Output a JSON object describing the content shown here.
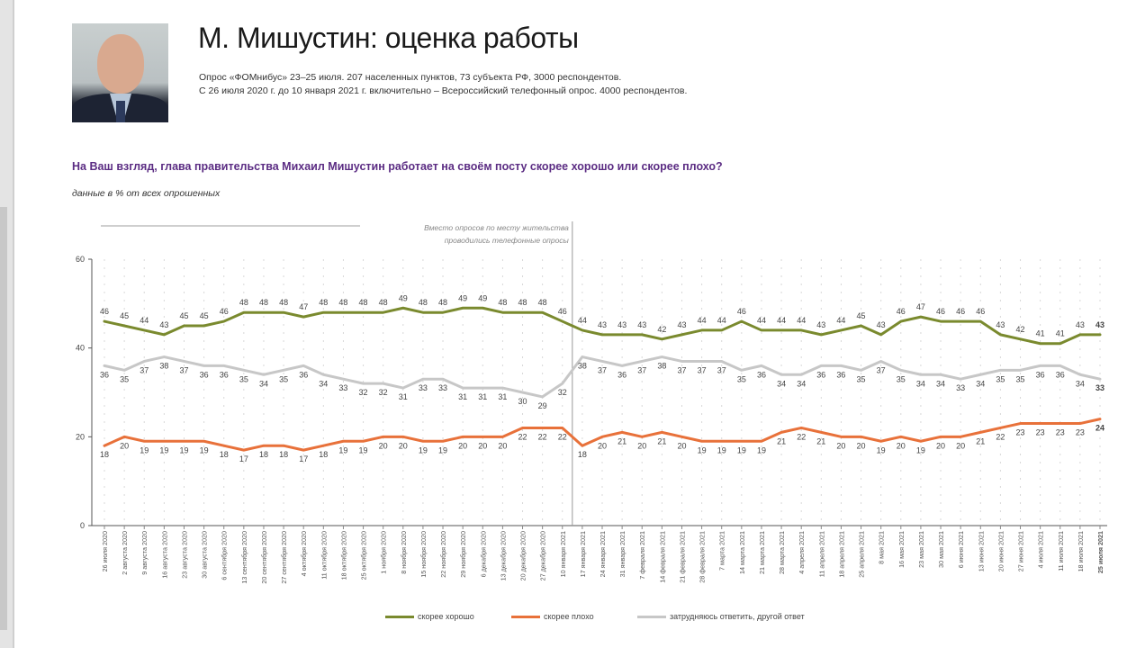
{
  "header": {
    "title": "М. Мишустин: оценка работы",
    "subtitle_line1": "Опрос «ФОМнибус» 23–25 июля. 207 населенных пунктов, 73 субъекта РФ, 3000 респондентов.",
    "subtitle_line2": "С 26 июля 2020 г. до 10 января 2021 г. включительно – Всероссийский телефонный опрос. 4000 респондентов.",
    "photo_alt": "portrait-photo"
  },
  "question": "На Ваш взгляд, глава правительства Михаил Мишустин работает на своём посту скорее хорошо или скорее плохо?",
  "note": "данные в % от всех опрошенных",
  "chart_data": {
    "type": "line",
    "title": "",
    "xlabel": "",
    "ylabel": "",
    "ylim": [
      0,
      60
    ],
    "yticks": [
      0,
      20,
      40,
      60
    ],
    "grid": true,
    "legend_position": "bottom",
    "annotation": {
      "text_line1": "Вместо опросов по месту жительства",
      "text_line2": "проводились телефонные опросы",
      "range_end_index": 23
    },
    "categories": [
      "26 июля 2020",
      "2 августа 2020",
      "9 августа 2020",
      "16 августа 2020",
      "23 августа 2020",
      "30 августа 2020",
      "6 сентября 2020",
      "13 сентября 2020",
      "20 сентября 2020",
      "27 сентября 2020",
      "4 октября 2020",
      "11 октября 2020",
      "18 октября 2020",
      "25 октября 2020",
      "1 ноября 2020",
      "8 ноября 2020",
      "15 ноября 2020",
      "22 ноября 2020",
      "29 ноября 2020",
      "6 декабря 2020",
      "13 декабря 2020",
      "20 декабря 2020",
      "27 декабря 2020",
      "10 января 2021",
      "17 января 2021",
      "24 января 2021",
      "31 января 2021",
      "7 февраля 2021",
      "14 февраля 2021",
      "21 февраля 2021",
      "28 февраля 2021",
      "7 марта 2021",
      "14 марта 2021",
      "21 марта 2021",
      "28 марта 2021",
      "4 апреля 2021",
      "11 апреля 2021",
      "18 апреля 2021",
      "25 апреля 2021",
      "8 мая 2021",
      "16 мая 2021",
      "23 мая 2021",
      "30 мая 2021",
      "6 июня 2021",
      "13 июня 2021",
      "20 июня 2021",
      "27 июня 2021",
      "4 июля 2021",
      "11 июля 2021",
      "18 июля 2021",
      "25 июля 2021"
    ],
    "series": [
      {
        "name": "скорее хорошо",
        "color": "#7a8a2e",
        "values": [
          46,
          45,
          44,
          43,
          45,
          45,
          46,
          48,
          48,
          48,
          47,
          48,
          48,
          48,
          48,
          49,
          48,
          48,
          49,
          49,
          48,
          48,
          48,
          46,
          44,
          43,
          43,
          43,
          42,
          43,
          44,
          44,
          46,
          44,
          44,
          44,
          43,
          44,
          45,
          43,
          46,
          47,
          46,
          46,
          46,
          43,
          42,
          41,
          41,
          43,
          43
        ]
      },
      {
        "name": "скорее плохо",
        "color": "#e8713a",
        "values": [
          18,
          20,
          19,
          19,
          19,
          19,
          18,
          17,
          18,
          18,
          17,
          18,
          19,
          19,
          20,
          20,
          19,
          19,
          20,
          20,
          20,
          22,
          22,
          22,
          18,
          20,
          21,
          20,
          21,
          20,
          19,
          19,
          19,
          19,
          21,
          22,
          21,
          20,
          20,
          19,
          20,
          19,
          20,
          20,
          21,
          22,
          23,
          23,
          23,
          23,
          24
        ]
      },
      {
        "name": "затрудняюсь ответить, другой ответ",
        "color": "#c7c7c7",
        "values": [
          36,
          35,
          37,
          38,
          37,
          36,
          36,
          35,
          34,
          35,
          36,
          34,
          33,
          32,
          32,
          31,
          33,
          33,
          31,
          31,
          31,
          30,
          29,
          32,
          38,
          37,
          36,
          37,
          38,
          37,
          37,
          37,
          35,
          36,
          34,
          34,
          36,
          36,
          35,
          37,
          35,
          34,
          34,
          33,
          34,
          35,
          35,
          36,
          36,
          34,
          33
        ]
      }
    ]
  },
  "legend": [
    {
      "label": "скорее хорошо",
      "color": "#7a8a2e"
    },
    {
      "label": "скорее плохо",
      "color": "#e8713a"
    },
    {
      "label": "затрудняюсь ответить, другой ответ",
      "color": "#c7c7c7"
    }
  ]
}
